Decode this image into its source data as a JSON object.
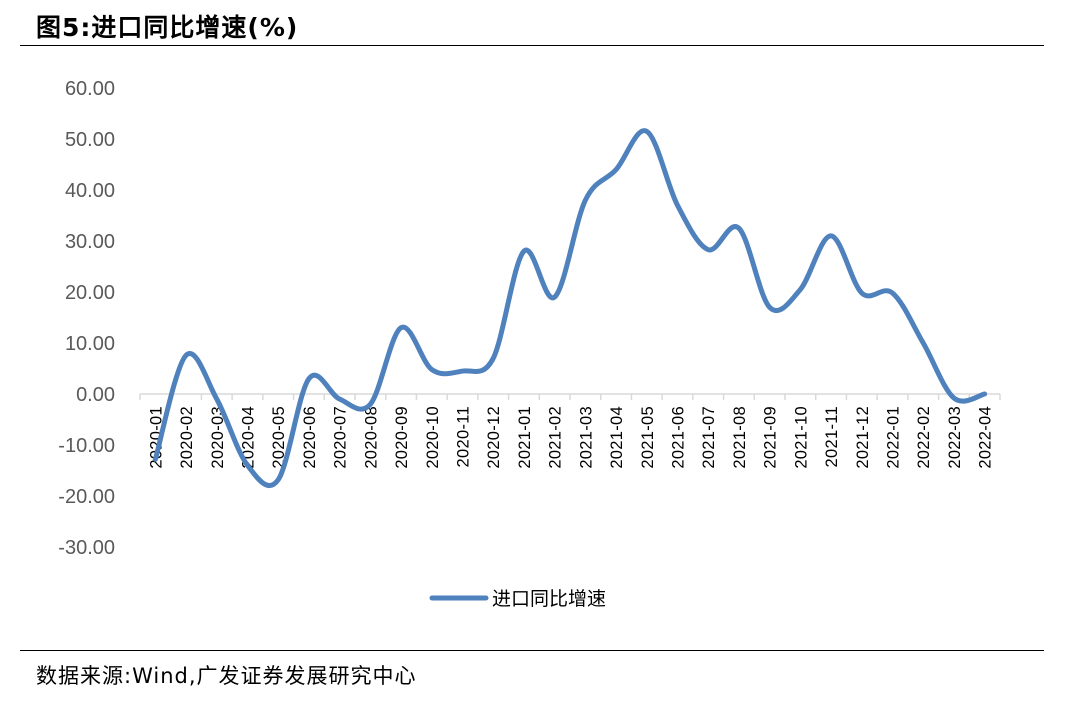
{
  "header": {
    "title": "图5:进口同比增速(%)"
  },
  "footer": {
    "source": "数据来源:Wind,广发证券发展研究中心"
  },
  "colors": {
    "series": "#4F81BD",
    "axis": "#D9D9D9",
    "text": "#595959"
  },
  "chart_data": {
    "type": "line",
    "smooth": true,
    "categories": [
      "2020-01",
      "2020-02",
      "2020-03",
      "2020-04",
      "2020-05",
      "2020-06",
      "2020-07",
      "2020-08",
      "2020-09",
      "2020-10",
      "2020-11",
      "2020-12",
      "2021-01",
      "2021-02",
      "2021-03",
      "2021-04",
      "2021-05",
      "2021-06",
      "2021-07",
      "2021-08",
      "2021-09",
      "2021-10",
      "2021-11",
      "2021-12",
      "2022-01",
      "2022-02",
      "2022-03",
      "2022-04"
    ],
    "series": [
      {
        "name": "进口同比增速",
        "values": [
          -12.8,
          7.6,
          -1.0,
          -14.0,
          -16.8,
          3.0,
          -1.0,
          -2.0,
          13.0,
          4.8,
          4.5,
          7.0,
          28.0,
          19.0,
          38.0,
          44.0,
          51.5,
          37.0,
          28.3,
          32.5,
          17.0,
          20.5,
          31.0,
          19.8,
          19.8,
          10.0,
          -0.8,
          0.0
        ]
      }
    ],
    "yticks": [
      "60.00",
      "50.00",
      "40.00",
      "30.00",
      "20.00",
      "10.00",
      "0.00",
      "-10.00",
      "-20.00",
      "-30.00"
    ],
    "ylim": [
      -30,
      60
    ],
    "legend": "bottom-center",
    "grid": false,
    "title": "",
    "xlabel": "",
    "ylabel": ""
  }
}
